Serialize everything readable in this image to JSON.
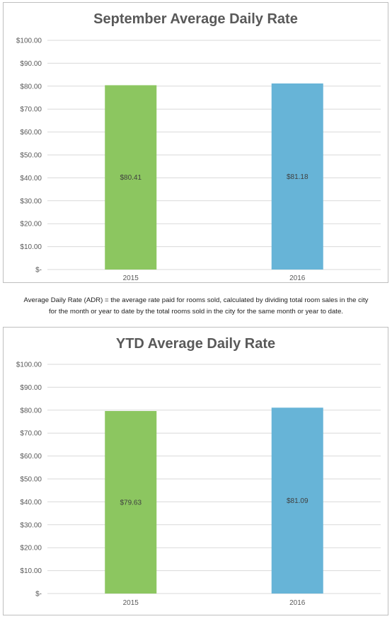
{
  "chart_data": [
    {
      "type": "bar",
      "title": "September Average Daily Rate",
      "categories": [
        "2015",
        "2016"
      ],
      "values": [
        80.41,
        81.18
      ],
      "value_labels": [
        "$80.41",
        "$81.18"
      ],
      "bar_colors": [
        "#8cc660",
        "#67b4d7"
      ],
      "ylim": [
        0,
        100
      ],
      "yticks": [
        0,
        10,
        20,
        30,
        40,
        50,
        60,
        70,
        80,
        90,
        100
      ],
      "ytick_labels": [
        "$-",
        "$10.00",
        "$20.00",
        "$30.00",
        "$40.00",
        "$50.00",
        "$60.00",
        "$70.00",
        "$80.00",
        "$90.00",
        "$100.00"
      ],
      "grid": true,
      "legend": "none"
    },
    {
      "type": "bar",
      "title": "YTD Average Daily Rate",
      "categories": [
        "2015",
        "2016"
      ],
      "values": [
        79.63,
        81.09
      ],
      "value_labels": [
        "$79.63",
        "$81.09"
      ],
      "bar_colors": [
        "#8cc660",
        "#67b4d7"
      ],
      "ylim": [
        0,
        100
      ],
      "yticks": [
        0,
        10,
        20,
        30,
        40,
        50,
        60,
        70,
        80,
        90,
        100
      ],
      "ytick_labels": [
        "$-",
        "$10.00",
        "$20.00",
        "$30.00",
        "$40.00",
        "$50.00",
        "$60.00",
        "$70.00",
        "$80.00",
        "$90.00",
        "$100.00"
      ],
      "grid": true,
      "legend": "none"
    }
  ],
  "caption": {
    "line1": "Average Daily Rate (ADR) = the average rate paid for rooms sold, calculated by dividing total room sales in the city",
    "line2": "for the month or year to date by the total rooms sold in the city for the same month or year to date."
  },
  "colors": {
    "gridline": "#d9d9d9",
    "axis_text": "#595959",
    "border": "#bfbfbf"
  }
}
